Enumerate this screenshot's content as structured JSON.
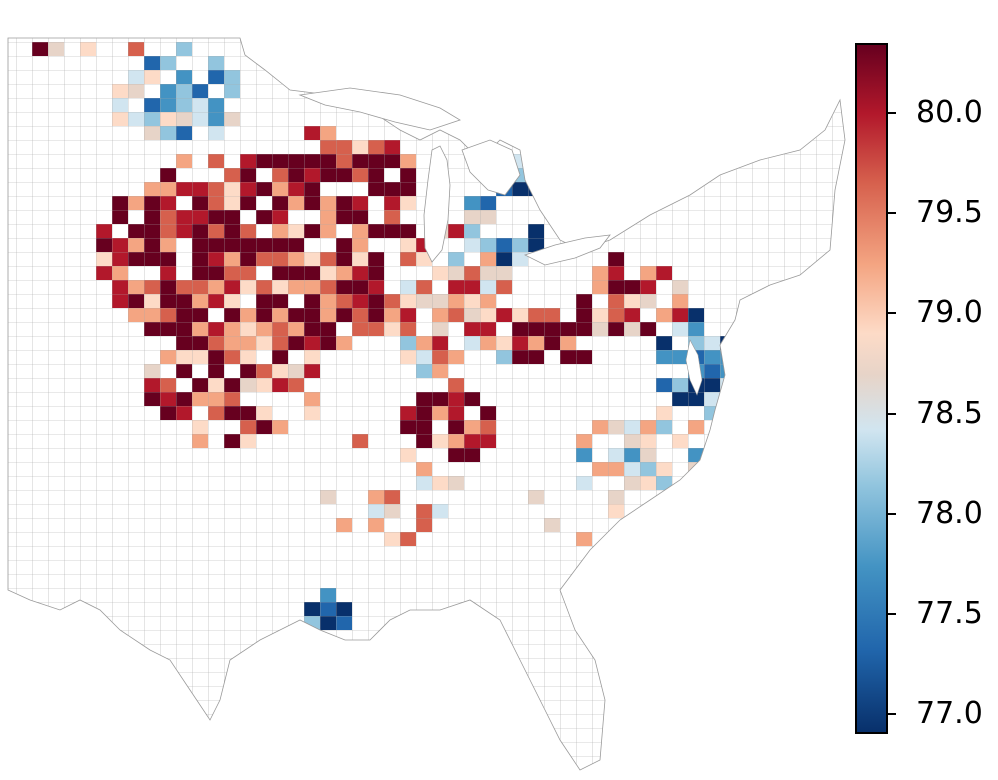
{
  "colorbar": {
    "min": 76.9,
    "max": 80.35,
    "colors": [
      "#08306b",
      "#2166ac",
      "#4393c3",
      "#92c5de",
      "#d1e5f0",
      "#e7d4c8",
      "#fddbc7",
      "#f4a582",
      "#d6604d",
      "#b2182b",
      "#67001f"
    ],
    "ticks": [
      {
        "value": 77.0,
        "label": "77.0"
      },
      {
        "value": 77.5,
        "label": "77.5"
      },
      {
        "value": 78.0,
        "label": "78.0"
      },
      {
        "value": 78.5,
        "label": "78.5"
      },
      {
        "value": 79.0,
        "label": "79.0"
      },
      {
        "value": 79.5,
        "label": "79.5"
      },
      {
        "value": 80.0,
        "label": "80.0"
      }
    ]
  },
  "map": {
    "region": "Eastern and Central United States counties",
    "no_data_fill": "#ffffff",
    "border_color": "#9a9a9a",
    "water_bodies": [
      "Lake Michigan",
      "Lake Superior",
      "Lake Huron",
      "Lake Erie",
      "Chesapeake Bay"
    ]
  }
}
